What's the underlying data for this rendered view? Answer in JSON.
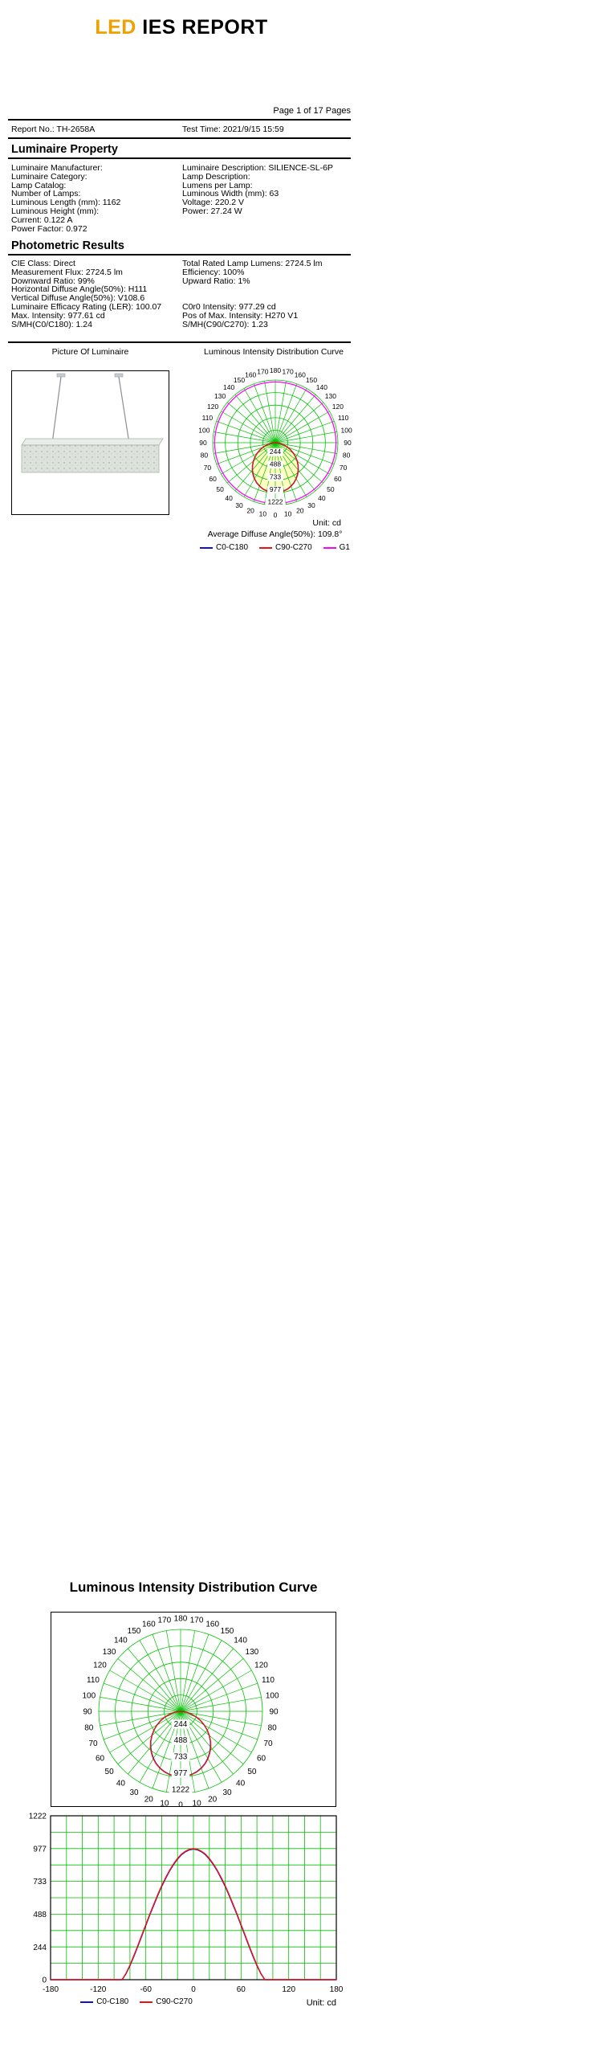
{
  "title": {
    "led": "LED",
    "rest": " IES REPORT"
  },
  "page_info": "Page 1 of 17 Pages",
  "report": {
    "no": "Report No.: TH-2658A",
    "time": "Test Time: 2021/9/15 15:59"
  },
  "sections": {
    "property": {
      "heading": "Luminaire Property",
      "left": [
        "Luminaire Manufacturer:",
        "Luminaire Category:",
        "Lamp Catalog:",
        "Number of Lamps:",
        "Luminous Length (mm): 1162",
        "Luminous Height (mm):",
        "Current: 0.122 A",
        "Power Factor: 0.972"
      ],
      "right": [
        "Luminaire Description: SILIENCE-SL-6P",
        "Lamp Description:",
        "Lumens per Lamp:",
        "Luminous Width (mm): 63",
        "Voltage: 220.2 V",
        "Power: 27.24 W"
      ]
    },
    "photometric": {
      "heading": "Photometric Results",
      "left": [
        "CIE Class: Direct",
        "Measurement Flux: 2724.5 lm",
        "Downward Ratio: 99%",
        "Horizontal Diffuse Angle(50%): H111",
        "Vertical Diffuse Angle(50%): V108.6",
        "Luminaire Efficacy Rating (LER): 100.07",
        "Max. Intensity: 977.61 cd",
        "S/MH(C0/C180): 1.24"
      ],
      "right": [
        "Total Rated Lamp Lumens: 2724.5 lm",
        "Efficiency: 100%",
        "Upward Ratio: 1%",
        "",
        "",
        "C0r0 Intensity: 977.29 cd",
        "Pos of Max. Intensity: H270 V1",
        "S/MH(C90/C270): 1.23"
      ]
    }
  },
  "figures": {
    "picture_label": "Picture Of Luminaire",
    "curve_label": "Luminous Intensity Distribution Curve",
    "unit": "Unit: cd",
    "avg_diffuse": "Average Diffuse Angle(50%): 109.8°",
    "legend": [
      {
        "label": "C0-C180",
        "color": "#1111cc"
      },
      {
        "label": "C90-C270",
        "color": "#ee1111"
      },
      {
        "label": "G1",
        "color": "#ff00ff"
      }
    ]
  },
  "big_section": {
    "heading": "Luminous Intensity Distribution Curve",
    "unit": "Unit: cd",
    "legend": [
      {
        "label": "C0-C180",
        "color": "#1111cc"
      },
      {
        "label": "C90-C270",
        "color": "#ee1111"
      }
    ]
  },
  "chart_data": [
    {
      "type": "polar",
      "title": "Luminous Intensity Distribution Curve",
      "unit": "cd",
      "rmax": 1222,
      "ring_values": [
        244,
        488,
        733,
        977,
        1222
      ],
      "angle_labels_deg": [
        0,
        10,
        20,
        30,
        40,
        50,
        60,
        70,
        80,
        90,
        100,
        110,
        120,
        130,
        140,
        150,
        160,
        170,
        180
      ],
      "angles_deg": [
        0,
        5,
        10,
        15,
        20,
        25,
        30,
        35,
        40,
        45,
        50,
        55,
        60,
        65,
        70,
        75,
        80,
        85,
        90
      ],
      "grid_color": "#00c000",
      "beam_fill": "#ffffc2",
      "avg_diffuse_angle_50": 109.8,
      "series": [
        {
          "name": "C0-C180",
          "color": "#1111cc",
          "values": [
            974,
            968,
            954,
            932,
            899,
            859,
            811,
            755,
            694,
            628,
            556,
            482,
            405,
            327,
            249,
            174,
            104,
            43,
            0
          ]
        },
        {
          "name": "C90-C270",
          "color": "#ee1111",
          "values": [
            977,
            972,
            958,
            936,
            904,
            864,
            816,
            761,
            700,
            634,
            562,
            488,
            411,
            333,
            255,
            180,
            109,
            46,
            0
          ]
        }
      ],
      "g1": {
        "name": "G1",
        "color": "#ff00ff",
        "value": 1185
      }
    },
    {
      "type": "polar",
      "title": "Luminous Intensity Distribution Curve",
      "unit": "cd",
      "rmax": 1222,
      "ring_values": [
        244,
        488,
        733,
        977,
        1222
      ],
      "angle_labels_deg": [
        0,
        10,
        20,
        30,
        40,
        50,
        60,
        70,
        80,
        90,
        100,
        110,
        120,
        130,
        140,
        150,
        160,
        170,
        180
      ],
      "angles_deg": [
        0,
        5,
        10,
        15,
        20,
        25,
        30,
        35,
        40,
        45,
        50,
        55,
        60,
        65,
        70,
        75,
        80,
        85,
        90
      ],
      "grid_color": "#00c000",
      "series": [
        {
          "name": "C0-C180",
          "color": "#1111cc",
          "values": [
            974,
            968,
            954,
            932,
            899,
            859,
            811,
            755,
            694,
            628,
            556,
            482,
            405,
            327,
            249,
            174,
            104,
            43,
            0
          ]
        },
        {
          "name": "C90-C270",
          "color": "#ee1111",
          "values": [
            977,
            972,
            958,
            936,
            904,
            864,
            816,
            761,
            700,
            634,
            562,
            488,
            411,
            333,
            255,
            180,
            109,
            46,
            0
          ]
        }
      ]
    },
    {
      "type": "line",
      "title": "",
      "xlabel": "",
      "ylabel": "",
      "unit": "cd",
      "xmin": -180,
      "xmax": 180,
      "ymax": 1222,
      "xticks": [
        -180,
        -120,
        -60,
        0,
        60,
        120,
        180
      ],
      "yticks": [
        0,
        244,
        488,
        733,
        977,
        1222
      ],
      "xgrid_step": 20,
      "ygrid_divs": 10,
      "grid_color": "#00c000",
      "x": [
        -180,
        -90,
        -85,
        -80,
        -75,
        -70,
        -65,
        -60,
        -55,
        -50,
        -45,
        -40,
        -35,
        -30,
        -25,
        -20,
        -15,
        -10,
        -5,
        0,
        5,
        10,
        15,
        20,
        25,
        30,
        35,
        40,
        45,
        50,
        55,
        60,
        65,
        70,
        75,
        80,
        85,
        90,
        180
      ],
      "series": [
        {
          "name": "C0-C180",
          "color": "#1111cc",
          "values": [
            0,
            0,
            43,
            104,
            174,
            249,
            327,
            405,
            482,
            556,
            628,
            694,
            755,
            811,
            859,
            899,
            932,
            954,
            968,
            974,
            968,
            954,
            932,
            899,
            859,
            811,
            755,
            694,
            628,
            556,
            482,
            405,
            327,
            249,
            174,
            104,
            43,
            0,
            0
          ]
        },
        {
          "name": "C90-C270",
          "color": "#ee1111",
          "values": [
            0,
            0,
            46,
            109,
            180,
            255,
            333,
            411,
            488,
            562,
            634,
            700,
            761,
            816,
            864,
            904,
            936,
            958,
            972,
            977,
            972,
            958,
            936,
            904,
            864,
            816,
            761,
            700,
            634,
            562,
            488,
            411,
            333,
            255,
            180,
            109,
            46,
            0,
            0
          ]
        }
      ]
    }
  ]
}
